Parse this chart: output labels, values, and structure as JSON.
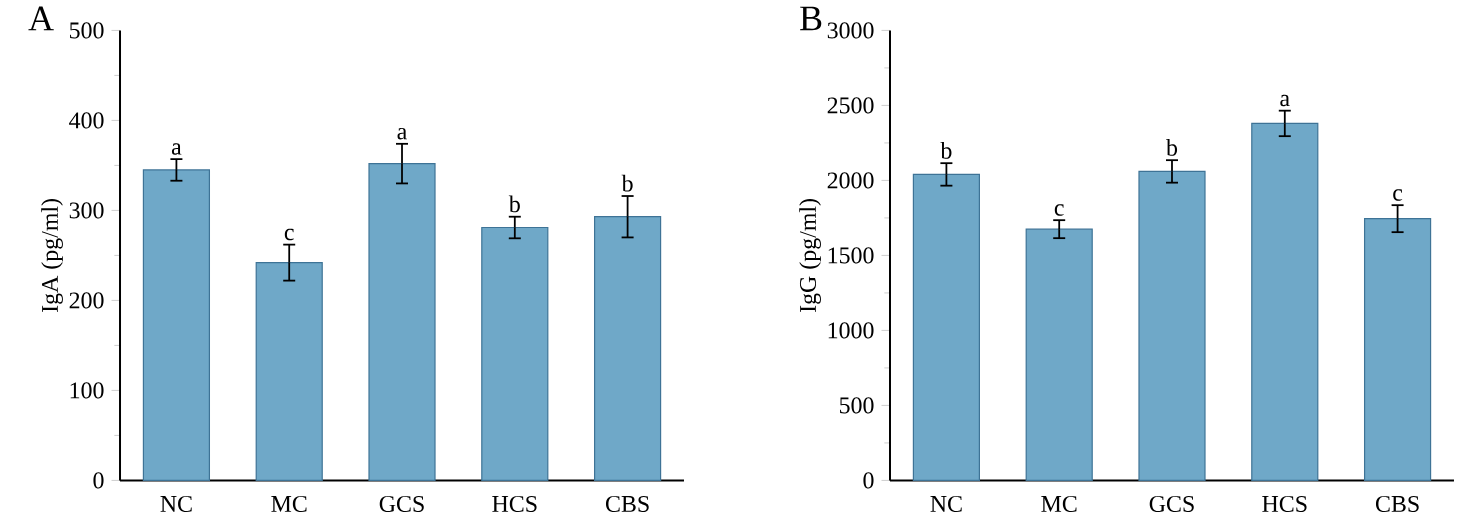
{
  "chart_data": [
    {
      "type": "bar",
      "title": "A",
      "ylabel": "IgA (pg/ml)",
      "categories": [
        "NC",
        "MC",
        "GCS",
        "HCS",
        "CBS"
      ],
      "color": "#6fa8c8",
      "values": [
        345,
        242,
        352,
        281,
        293
      ],
      "errors": [
        12,
        20,
        22,
        12,
        23
      ],
      "value_labels": [
        "a",
        "c",
        "a",
        "b",
        "b"
      ],
      "ylim": [
        0,
        500
      ],
      "yticks": [
        0,
        100,
        200,
        300,
        400,
        500
      ]
    },
    {
      "type": "bar",
      "title": "B",
      "ylabel": "IgG (pg/ml)",
      "categories": [
        "NC",
        "MC",
        "GCS",
        "HCS",
        "CBS"
      ],
      "color": "#6fa8c8",
      "values": [
        2040,
        1675,
        2060,
        2380,
        1745
      ],
      "errors": [
        75,
        60,
        75,
        85,
        90
      ],
      "value_labels": [
        "b",
        "c",
        "b",
        "a",
        "c"
      ],
      "ylim": [
        0,
        3000
      ],
      "yticks": [
        0,
        500,
        1000,
        1500,
        2000,
        2500,
        3000
      ]
    }
  ]
}
